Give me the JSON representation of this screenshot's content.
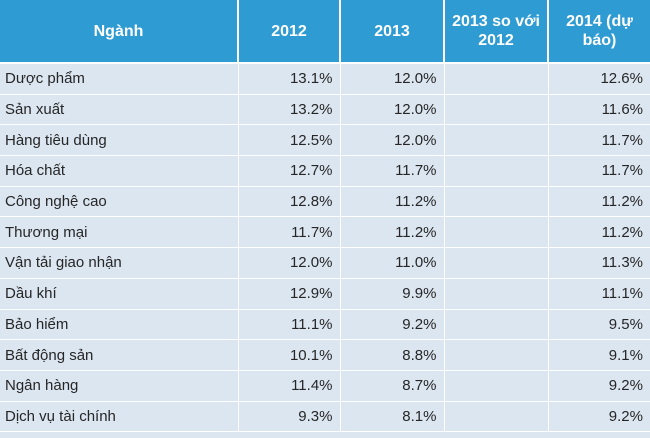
{
  "headers": [
    "Ngành",
    "2012",
    "2013",
    "2013 so với 2012",
    "2014 (dự báo)"
  ],
  "rows": [
    {
      "name": "Dược phẩm",
      "y2012": "13.1%",
      "y2013": "12.0%",
      "compare": "",
      "y2014": "12.6%"
    },
    {
      "name": "Sản xuất",
      "y2012": "13.2%",
      "y2013": "12.0%",
      "compare": "",
      "y2014": "11.6%"
    },
    {
      "name": "Hàng tiêu dùng",
      "y2012": "12.5%",
      "y2013": "12.0%",
      "compare": "",
      "y2014": "11.7%"
    },
    {
      "name": "Hóa chất",
      "y2012": "12.7%",
      "y2013": "11.7%",
      "compare": "",
      "y2014": "11.7%"
    },
    {
      "name": "Công nghệ cao",
      "y2012": "12.8%",
      "y2013": "11.2%",
      "compare": "",
      "y2014": "11.2%"
    },
    {
      "name": "Thương mại",
      "y2012": "11.7%",
      "y2013": "11.2%",
      "compare": "",
      "y2014": "11.2%"
    },
    {
      "name": "Vận tải giao nhận",
      "y2012": "12.0%",
      "y2013": "11.0%",
      "compare": "",
      "y2014": "11.3%"
    },
    {
      "name": "Dầu khí",
      "y2012": "12.9%",
      "y2013": "9.9%",
      "compare": "",
      "y2014": "11.1%"
    },
    {
      "name": "Bảo hiểm",
      "y2012": "11.1%",
      "y2013": "9.2%",
      "compare": "",
      "y2014": "9.5%"
    },
    {
      "name": "Bất động sản",
      "y2012": "10.1%",
      "y2013": "8.8%",
      "compare": "",
      "y2014": "9.1%"
    },
    {
      "name": "Ngân hàng",
      "y2012": "11.4%",
      "y2013": "8.7%",
      "compare": "",
      "y2014": "9.2%"
    },
    {
      "name": "Dịch vụ tài chính",
      "y2012": "9.3%",
      "y2013": "8.1%",
      "compare": "",
      "y2014": "9.2%"
    }
  ]
}
